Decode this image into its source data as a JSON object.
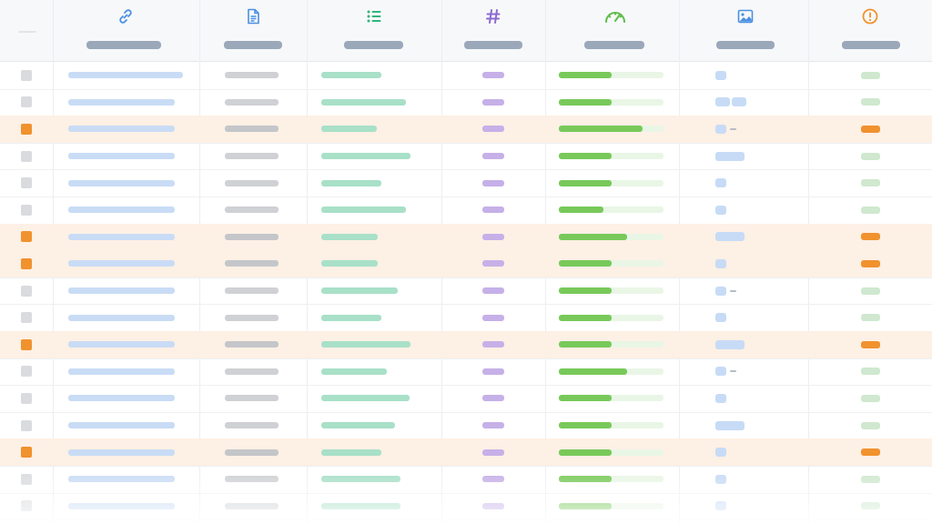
{
  "colors": {
    "header_bg": "#f7f8fa",
    "header_pill": "#9ba8ba",
    "flag_row_bg": "#fdf0e5",
    "flag_orange": "#f0922e",
    "checkbox_gray": "#d9dbde",
    "link_pill": "#c9dcf5",
    "text_pill": "#cfd1d4",
    "list_pill": "#a8e0c8",
    "number_pill": "#c6b0e8",
    "progress_fill": "#78c95a",
    "progress_track": "#e9f6e6",
    "image_thumb": "#c7dbf6",
    "status_ok": "#cfe8cf",
    "icon_link": "#4a90e2",
    "icon_doc": "#4a90e2",
    "icon_list": "#2fb67c",
    "icon_number": "#8c6ad1",
    "icon_gauge": "#5ebd48",
    "icon_image": "#4a90e2",
    "icon_alert": "#f0922e"
  },
  "columns": [
    {
      "name": "select",
      "icon": "none"
    },
    {
      "name": "link",
      "icon": "link-icon"
    },
    {
      "name": "document",
      "icon": "document-icon"
    },
    {
      "name": "list",
      "icon": "list-icon"
    },
    {
      "name": "number",
      "icon": "hash-icon"
    },
    {
      "name": "progress",
      "icon": "gauge-icon"
    },
    {
      "name": "image",
      "icon": "image-icon"
    },
    {
      "name": "status",
      "icon": "alert-icon"
    }
  ],
  "rows": [
    {
      "flagged": false,
      "progress": 0.5,
      "image_thumbs": 1,
      "image_dash": false
    },
    {
      "flagged": false,
      "progress": 0.5,
      "image_thumbs": 2,
      "image_dash": false
    },
    {
      "flagged": true,
      "progress": 0.8,
      "image_thumbs": 1,
      "image_dash": true
    },
    {
      "flagged": false,
      "progress": 0.5,
      "image_thumbs": 1,
      "image_dash": false,
      "image_wide": true
    },
    {
      "flagged": false,
      "progress": 0.5,
      "image_thumbs": 1,
      "image_dash": false
    },
    {
      "flagged": false,
      "progress": 0.43,
      "image_thumbs": 1,
      "image_dash": false
    },
    {
      "flagged": true,
      "progress": 0.65,
      "image_thumbs": 1,
      "image_dash": false,
      "image_wide": true
    },
    {
      "flagged": true,
      "progress": 0.5,
      "image_thumbs": 1,
      "image_dash": false
    },
    {
      "flagged": false,
      "progress": 0.5,
      "image_thumbs": 1,
      "image_dash": true
    },
    {
      "flagged": false,
      "progress": 0.5,
      "image_thumbs": 1,
      "image_dash": false
    },
    {
      "flagged": true,
      "progress": 0.5,
      "image_thumbs": 1,
      "image_dash": false,
      "image_wide": true
    },
    {
      "flagged": false,
      "progress": 0.65,
      "image_thumbs": 1,
      "image_dash": true
    },
    {
      "flagged": false,
      "progress": 0.5,
      "image_thumbs": 1,
      "image_dash": false
    },
    {
      "flagged": false,
      "progress": 0.5,
      "image_thumbs": 1,
      "image_dash": false,
      "image_wide": true
    },
    {
      "flagged": true,
      "progress": 0.5,
      "image_thumbs": 1,
      "image_dash": false
    },
    {
      "flagged": false,
      "progress": 0.5,
      "image_thumbs": 1,
      "image_dash": false
    },
    {
      "flagged": false,
      "progress": 0.5,
      "image_thumbs": 1,
      "image_dash": false
    }
  ]
}
